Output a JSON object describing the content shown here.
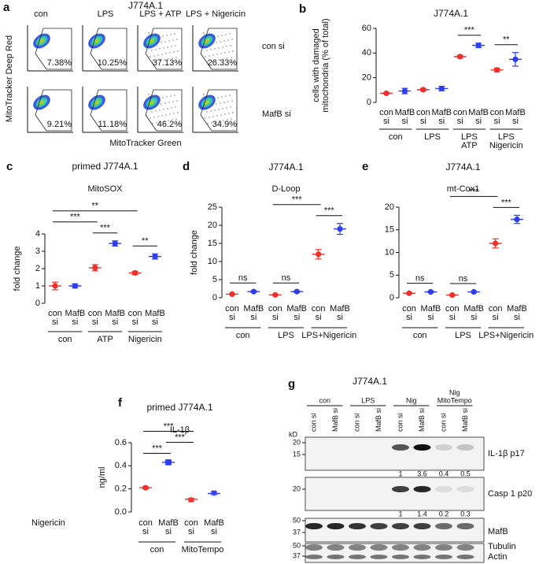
{
  "panel_a": {
    "panel": "a",
    "title": "J774A.1",
    "columns": [
      "con",
      "LPS",
      "LPS + ATP",
      "LPS + Nigericin"
    ],
    "rows": [
      "con si",
      "MafB si"
    ],
    "percentages": [
      [
        "7.38%",
        "10.25%",
        "37.13%",
        "26.33%"
      ],
      [
        "9.21%",
        "11.18%",
        "46.2%",
        "34.9%"
      ]
    ],
    "x_label": "MitoTracker Green",
    "y_label": "MitoTracker Deep Red"
  },
  "chart_data": [
    {
      "panel": "b",
      "type": "dot",
      "title": "J774A.1",
      "y_label": [
        "cells with damaged",
        "mitochondria (% of total)"
      ],
      "categories": [
        [
          "con",
          "si"
        ],
        [
          "MafB",
          "si"
        ],
        [
          "con",
          "si"
        ],
        [
          "MafB",
          "si"
        ],
        [
          "con",
          "si"
        ],
        [
          "MafB",
          "si"
        ],
        [
          "con",
          "si"
        ],
        [
          "MafB",
          "si"
        ]
      ],
      "values": [
        7.4,
        9.2,
        10.3,
        11.2,
        37.1,
        46.2,
        26.3,
        34.9
      ],
      "errors": [
        0.6,
        2.2,
        1.0,
        1.8,
        1.2,
        1.8,
        1.5,
        5.5
      ],
      "colors": [
        "#e8322d",
        "#2e3ee6",
        "#e8322d",
        "#2e3ee6",
        "#e8322d",
        "#2e3ee6",
        "#e8322d",
        "#2e3ee6"
      ],
      "groups": [
        {
          "label": [
            "con"
          ],
          "from": 0,
          "to": 1
        },
        {
          "label": [
            "LPS"
          ],
          "from": 2,
          "to": 3
        },
        {
          "label": [
            "LPS",
            "ATP"
          ],
          "from": 4,
          "to": 5
        },
        {
          "label": [
            "LPS",
            "Nigericin"
          ],
          "from": 6,
          "to": 7
        }
      ],
      "brackets": [
        {
          "label": "***",
          "from": 4,
          "to": 5
        },
        {
          "label": "**",
          "from": 6,
          "to": 7
        }
      ],
      "ylim": [
        0,
        60
      ],
      "yticks": [
        0,
        20,
        40,
        60
      ]
    },
    {
      "panel": "c",
      "type": "dot",
      "title": "primed J774A.1",
      "subtitle": "MitoSOX",
      "y_label": [
        "fold change"
      ],
      "categories": [
        [
          "con",
          "si"
        ],
        [
          "MafB",
          "si"
        ],
        [
          "con",
          "si"
        ],
        [
          "MafB",
          "si"
        ],
        [
          "con",
          "si"
        ],
        [
          "MafB",
          "si"
        ]
      ],
      "values": [
        1.0,
        1.0,
        2.05,
        3.45,
        1.75,
        2.7
      ],
      "errors": [
        0.22,
        0.12,
        0.18,
        0.15,
        0.1,
        0.15
      ],
      "colors": [
        "#e8322d",
        "#2e3ee6",
        "#e8322d",
        "#2e3ee6",
        "#e8322d",
        "#2e3ee6"
      ],
      "groups": [
        {
          "label": [
            "con"
          ],
          "from": 0,
          "to": 1
        },
        {
          "label": [
            "ATP"
          ],
          "from": 2,
          "to": 3
        },
        {
          "label": [
            "Nigericin"
          ],
          "from": 4,
          "to": 5
        }
      ],
      "brackets": [
        {
          "label": "***",
          "from": 2,
          "to": 3
        },
        {
          "label": "**",
          "from": 4,
          "to": 5
        },
        {
          "label": "***",
          "from": 0,
          "to": 2
        },
        {
          "label": "**",
          "from": 0,
          "to": 4
        }
      ],
      "ylim": [
        0,
        4
      ],
      "yticks": [
        0,
        1,
        2,
        3,
        4
      ]
    },
    {
      "panel": "d",
      "type": "dot",
      "title": "J774A.1",
      "subtitle": "D-Loop",
      "y_label": [
        "fold change"
      ],
      "categories": [
        [
          "con",
          "si"
        ],
        [
          "MafB",
          "si"
        ],
        [
          "con",
          "si"
        ],
        [
          "MafB",
          "si"
        ],
        [
          "con",
          "si"
        ],
        [
          "MafB",
          "si"
        ]
      ],
      "values": [
        1.0,
        1.7,
        0.8,
        1.7,
        12.0,
        19.0
      ],
      "errors": [
        0.1,
        0.2,
        0.1,
        0.2,
        1.3,
        1.5
      ],
      "colors": [
        "#e8322d",
        "#2e3ee6",
        "#e8322d",
        "#2e3ee6",
        "#e8322d",
        "#2e3ee6"
      ],
      "groups": [
        {
          "label": [
            "con"
          ],
          "from": 0,
          "to": 1
        },
        {
          "label": [
            "LPS"
          ],
          "from": 2,
          "to": 3
        },
        {
          "label": [
            "LPS+Nigericin"
          ],
          "from": 4,
          "to": 5
        }
      ],
      "brackets": [
        {
          "label": "ns",
          "from": 0,
          "to": 1
        },
        {
          "label": "ns",
          "from": 2,
          "to": 3
        },
        {
          "label": "***",
          "from": 4,
          "to": 5
        },
        {
          "label": "***",
          "from": 2,
          "to": 4
        }
      ],
      "ylim": [
        0,
        25
      ],
      "yticks": [
        0,
        5,
        10,
        15,
        20,
        25
      ]
    },
    {
      "panel": "e",
      "type": "dot",
      "title": "J774A.1",
      "subtitle": "mt-Cox1",
      "categories": [
        [
          "con",
          "si"
        ],
        [
          "MafB",
          "si"
        ],
        [
          "con",
          "si"
        ],
        [
          "MafB",
          "si"
        ],
        [
          "con",
          "si"
        ],
        [
          "MafB",
          "si"
        ]
      ],
      "values": [
        1.0,
        1.3,
        0.6,
        1.3,
        12.0,
        17.3
      ],
      "errors": [
        0.1,
        0.15,
        0.1,
        0.1,
        1.0,
        0.9
      ],
      "colors": [
        "#e8322d",
        "#2e3ee6",
        "#e8322d",
        "#2e3ee6",
        "#e8322d",
        "#2e3ee6"
      ],
      "groups": [
        {
          "label": [
            "con"
          ],
          "from": 0,
          "to": 1
        },
        {
          "label": [
            "LPS"
          ],
          "from": 2,
          "to": 3
        },
        {
          "label": [
            "LPS+Nigericin"
          ],
          "from": 4,
          "to": 5
        }
      ],
      "brackets": [
        {
          "label": "ns",
          "from": 0,
          "to": 1
        },
        {
          "label": "ns",
          "from": 2,
          "to": 3
        },
        {
          "label": "***",
          "from": 4,
          "to": 5
        },
        {
          "label": "***",
          "from": 2,
          "to": 4
        }
      ],
      "ylim": [
        0,
        20
      ],
      "yticks": [
        0,
        5,
        10,
        15,
        20
      ]
    },
    {
      "panel": "f",
      "type": "dot",
      "title": "primed J774A.1",
      "subtitle": "IL-1β",
      "y_label": [
        "ng/ml"
      ],
      "row_label": "Nigericin",
      "categories": [
        [
          "con",
          "si"
        ],
        [
          "MafB",
          "si"
        ],
        [
          "con",
          "si"
        ],
        [
          "MafB",
          "si"
        ]
      ],
      "values": [
        0.21,
        0.43,
        0.11,
        0.16
      ],
      "errors": [
        0.01,
        0.01,
        0.01,
        0.01
      ],
      "colors": [
        "#e8322d",
        "#2e3ee6",
        "#e8322d",
        "#2e3ee6"
      ],
      "markers": [
        "circle",
        "square",
        "triangle",
        "triangle-down"
      ],
      "groups": [
        {
          "label": [
            "con"
          ],
          "from": 0,
          "to": 1
        },
        {
          "label": [
            "MitoTempo"
          ],
          "from": 2,
          "to": 3
        }
      ],
      "brackets": [
        {
          "label": "***",
          "from": 0,
          "to": 1
        },
        {
          "label": "***",
          "from": 1,
          "to": 2
        },
        {
          "label": "***",
          "from": 0,
          "to": 2
        }
      ],
      "ylim": [
        0,
        0.6
      ],
      "yticks": [
        {
          "value": 0,
          "label": "0.0"
        },
        0.2,
        0.4,
        0.6
      ]
    }
  ],
  "panel_g": {
    "panel": "g",
    "title": "J774A.1",
    "kd": "kD",
    "groups": [
      {
        "label": [
          "con"
        ],
        "from": 0,
        "to": 1
      },
      {
        "label": [
          "LPS"
        ],
        "from": 2,
        "to": 3
      },
      {
        "label": [
          "Nig"
        ],
        "from": 4,
        "to": 5
      },
      {
        "label": [
          "Nig",
          "MitoTempo"
        ],
        "from": 6,
        "to": 7
      }
    ],
    "lanes": [
      "con si",
      "MafB si",
      "con si",
      "MafB si",
      "con si",
      "MafB si",
      "con si",
      "MafB si"
    ],
    "blots": [
      {
        "label": [
          "IL-1β p17"
        ],
        "mw": [
          "20",
          "15"
        ],
        "quant": [
          "1",
          "3.6",
          "0.4",
          "0.5"
        ]
      },
      {
        "label": [
          "Casp 1 p20"
        ],
        "mw": [
          "20"
        ],
        "quant": [
          "1",
          "1.4",
          "0.2",
          "0.3"
        ]
      },
      {
        "label": [
          "MafB"
        ],
        "mw": [
          "50",
          "37"
        ]
      },
      {
        "label": [
          "Tubulin",
          "Actin"
        ],
        "mw": [
          "50",
          "37"
        ]
      }
    ]
  }
}
